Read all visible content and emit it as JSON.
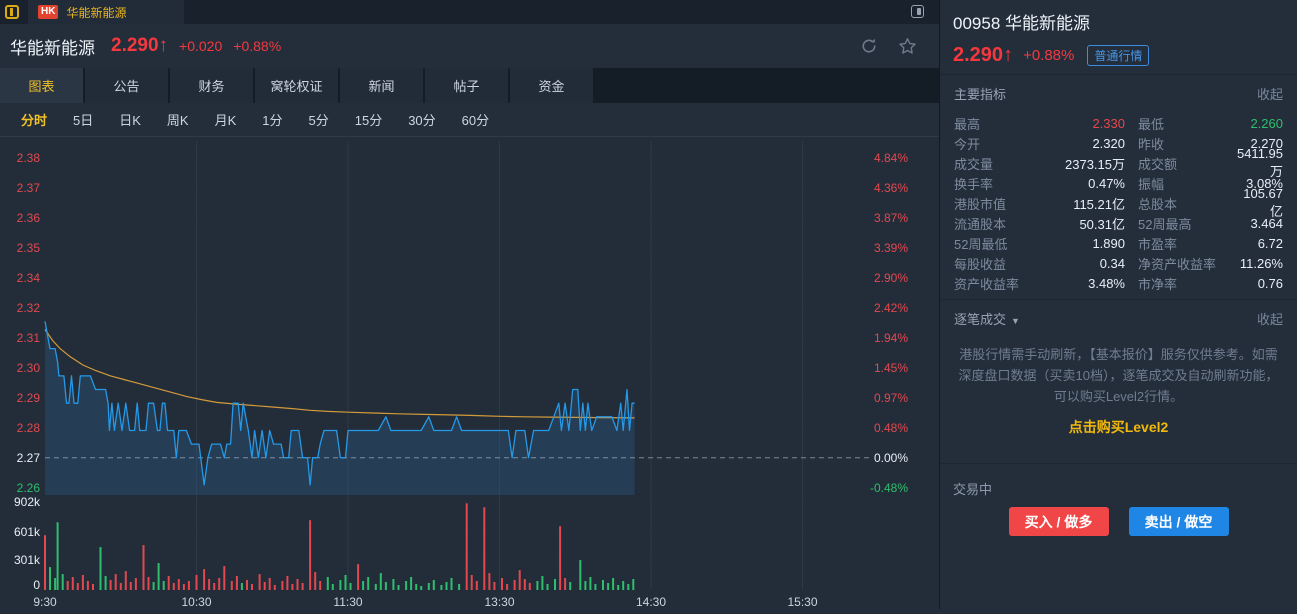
{
  "colors": {
    "up_red": "#e2484e",
    "down_green": "#2fbe6b",
    "price_red": "#f5383e",
    "accent_yellow": "#f0c028",
    "link_yellow": "#f0b90b",
    "blue": "#2b8fe8",
    "price_line": "#2499e8",
    "avg_line": "#d39a3a",
    "neutral_text": "#e9eef6"
  },
  "window": {
    "market_badge": "HK",
    "tab_title": "华能新能源"
  },
  "header": {
    "name": "华能新能源",
    "price": "2.290",
    "arrow": "↑",
    "change": "+0.020",
    "change_pct": "+0.88%"
  },
  "tabs": {
    "active_index": 0,
    "items": [
      "图表",
      "公告",
      "财务",
      "窝轮权证",
      "新闻",
      "帖子",
      "资金"
    ]
  },
  "periods": {
    "active_index": 0,
    "items": [
      "分时",
      "5日",
      "日K",
      "周K",
      "月K",
      "1分",
      "5分",
      "15分",
      "30分",
      "60分"
    ]
  },
  "chart_data": {
    "type": "line",
    "title": "分时 (intraday) 00958",
    "prev_close": 2.27,
    "x_axis": {
      "labels": [
        "9:30",
        "10:30",
        "11:30",
        "13:30",
        "14:30",
        "15:30"
      ],
      "minutes": [
        0,
        60,
        120,
        180,
        240,
        300
      ],
      "total_minutes": 330,
      "grid_minutes": [
        60,
        120,
        180,
        240,
        300
      ]
    },
    "y_axis_price": {
      "labels": [
        "2.38",
        "2.37",
        "2.36",
        "2.35",
        "2.34",
        "2.32",
        "2.31",
        "2.30",
        "2.29",
        "2.28",
        "2.27",
        "2.26"
      ],
      "top_value": 2.3799,
      "bottom_value": 2.2591
    },
    "y_axis_pct": {
      "labels": [
        "4.84%",
        "4.36%",
        "3.87%",
        "3.39%",
        "2.90%",
        "2.42%",
        "1.94%",
        "1.45%",
        "0.97%",
        "0.48%",
        "0.00%",
        "-0.48%"
      ]
    },
    "volume_axis": {
      "labels": [
        "902k",
        "601k",
        "301k",
        "0"
      ],
      "values_k": [
        902,
        601,
        301,
        0
      ]
    },
    "series": [
      {
        "name": "price",
        "color": "#2499e8",
        "points": [
          [
            0,
            2.32
          ],
          [
            1,
            2.315
          ],
          [
            2,
            2.31
          ],
          [
            4,
            2.31
          ],
          [
            5,
            2.305
          ],
          [
            5.5,
            2.3
          ],
          [
            7.5,
            2.3
          ],
          [
            8.5,
            2.29
          ],
          [
            9.5,
            2.29
          ],
          [
            10.5,
            2.3
          ],
          [
            11.5,
            2.29
          ],
          [
            13,
            2.29
          ],
          [
            14,
            2.3
          ],
          [
            18,
            2.3
          ],
          [
            20,
            2.295
          ],
          [
            24,
            2.295
          ],
          [
            25,
            2.29
          ],
          [
            25.5,
            2.28
          ],
          [
            26.5,
            2.29
          ],
          [
            27.5,
            2.28
          ],
          [
            29,
            2.29
          ],
          [
            30.5,
            2.28
          ],
          [
            32,
            2.29
          ],
          [
            33.5,
            2.28
          ],
          [
            35.5,
            2.28
          ],
          [
            36.5,
            2.29
          ],
          [
            37.5,
            2.28
          ],
          [
            40,
            2.28
          ],
          [
            41,
            2.29
          ],
          [
            43,
            2.29
          ],
          [
            44.5,
            2.28
          ],
          [
            45.5,
            2.28
          ],
          [
            46.5,
            2.29
          ],
          [
            47.5,
            2.29
          ],
          [
            48.5,
            2.28
          ],
          [
            51,
            2.28
          ],
          [
            52,
            2.27
          ],
          [
            53,
            2.28
          ],
          [
            56,
            2.28
          ],
          [
            58,
            2.275
          ],
          [
            61,
            2.275
          ],
          [
            63,
            2.26
          ],
          [
            64.5,
            2.27
          ],
          [
            66,
            2.275
          ],
          [
            69.5,
            2.275
          ],
          [
            71,
            2.27
          ],
          [
            72,
            2.275
          ],
          [
            73.5,
            2.275
          ],
          [
            74.5,
            2.29
          ],
          [
            76.5,
            2.29
          ],
          [
            77.5,
            2.28
          ],
          [
            78.5,
            2.29
          ],
          [
            80.5,
            2.28
          ],
          [
            82,
            2.27
          ],
          [
            83,
            2.28
          ],
          [
            84.5,
            2.27
          ],
          [
            86,
            2.28
          ],
          [
            87.5,
            2.27
          ],
          [
            89,
            2.28
          ],
          [
            90.5,
            2.275
          ],
          [
            93.5,
            2.275
          ],
          [
            94.5,
            2.27
          ],
          [
            96.5,
            2.27
          ],
          [
            97.5,
            2.28
          ],
          [
            100.5,
            2.28
          ],
          [
            102,
            2.27
          ],
          [
            104,
            2.27
          ],
          [
            105,
            2.26
          ],
          [
            106,
            2.27
          ],
          [
            108,
            2.27
          ],
          [
            109,
            2.275
          ],
          [
            110.5,
            2.28
          ],
          [
            115.5,
            2.28
          ],
          [
            117,
            2.27
          ],
          [
            119,
            2.27
          ],
          [
            120,
            2.28
          ],
          [
            126,
            2.28
          ],
          [
            132,
            2.28
          ],
          [
            135,
            2.285
          ],
          [
            137,
            2.28
          ],
          [
            149,
            2.28
          ],
          [
            152,
            2.285
          ],
          [
            154,
            2.28
          ],
          [
            161,
            2.28
          ],
          [
            163,
            2.285
          ],
          [
            165,
            2.28
          ],
          [
            180,
            2.28
          ],
          [
            183.5,
            2.28
          ],
          [
            185,
            2.27
          ],
          [
            186.5,
            2.28
          ],
          [
            190,
            2.28
          ],
          [
            191.5,
            2.27
          ],
          [
            193.5,
            2.28
          ],
          [
            199.5,
            2.28
          ],
          [
            201.5,
            2.285
          ],
          [
            203.5,
            2.29
          ],
          [
            204.5,
            2.28
          ],
          [
            206,
            2.29
          ],
          [
            207.5,
            2.28
          ],
          [
            209,
            2.295
          ],
          [
            211,
            2.295
          ],
          [
            212,
            2.28
          ],
          [
            213,
            2.29
          ],
          [
            214,
            2.28
          ],
          [
            215,
            2.29
          ],
          [
            216.5,
            2.28
          ],
          [
            218.5,
            2.285
          ],
          [
            224.5,
            2.285
          ],
          [
            226.5,
            2.28
          ],
          [
            228,
            2.29
          ],
          [
            229,
            2.28
          ],
          [
            230.5,
            2.295
          ],
          [
            231.5,
            2.28
          ],
          [
            232.5,
            2.29
          ],
          [
            233.5,
            2.29
          ]
        ]
      },
      {
        "name": "avg",
        "color": "#d39a3a",
        "points": [
          [
            0,
            2.317
          ],
          [
            3,
            2.313
          ],
          [
            6,
            2.31
          ],
          [
            10,
            2.307
          ],
          [
            15,
            2.304
          ],
          [
            20,
            2.302
          ],
          [
            26,
            2.3
          ],
          [
            32,
            2.2985
          ],
          [
            38,
            2.297
          ],
          [
            44,
            2.2955
          ],
          [
            50,
            2.294
          ],
          [
            56,
            2.2925
          ],
          [
            62,
            2.2913
          ],
          [
            68,
            2.2903
          ],
          [
            75,
            2.2897
          ],
          [
            82,
            2.2892
          ],
          [
            90,
            2.2886
          ],
          [
            98,
            2.288
          ],
          [
            105,
            2.2874
          ],
          [
            112,
            2.287
          ],
          [
            120,
            2.2867
          ],
          [
            130,
            2.2864
          ],
          [
            140,
            2.2861
          ],
          [
            150,
            2.2859
          ],
          [
            160,
            2.2857
          ],
          [
            170,
            2.2855
          ],
          [
            180,
            2.2852
          ],
          [
            190,
            2.285
          ],
          [
            200,
            2.2849
          ],
          [
            210,
            2.2848
          ],
          [
            220,
            2.2847
          ],
          [
            233.5,
            2.2846
          ]
        ]
      }
    ],
    "volume_bars": [
      [
        0,
        550,
        "r"
      ],
      [
        2,
        230,
        "g"
      ],
      [
        4,
        120,
        "g"
      ],
      [
        5,
        680,
        "g"
      ],
      [
        7,
        160,
        "g"
      ],
      [
        9,
        90,
        "r"
      ],
      [
        11,
        130,
        "r"
      ],
      [
        13,
        70,
        "r"
      ],
      [
        15,
        150,
        "r"
      ],
      [
        17,
        90,
        "r"
      ],
      [
        19,
        60,
        "r"
      ],
      [
        22,
        430,
        "g"
      ],
      [
        24,
        140,
        "g"
      ],
      [
        26,
        100,
        "r"
      ],
      [
        28,
        160,
        "r"
      ],
      [
        30,
        70,
        "r"
      ],
      [
        32,
        190,
        "r"
      ],
      [
        34,
        80,
        "r"
      ],
      [
        36,
        120,
        "r"
      ],
      [
        39,
        450,
        "r"
      ],
      [
        41,
        130,
        "r"
      ],
      [
        43,
        80,
        "g"
      ],
      [
        45,
        270,
        "g"
      ],
      [
        47,
        90,
        "g"
      ],
      [
        49,
        140,
        "r"
      ],
      [
        51,
        70,
        "r"
      ],
      [
        53,
        110,
        "r"
      ],
      [
        55,
        60,
        "r"
      ],
      [
        57,
        90,
        "r"
      ],
      [
        60,
        150,
        "r"
      ],
      [
        63,
        210,
        "r"
      ],
      [
        65,
        110,
        "r"
      ],
      [
        67,
        70,
        "r"
      ],
      [
        69,
        120,
        "r"
      ],
      [
        71,
        240,
        "r"
      ],
      [
        74,
        90,
        "r"
      ],
      [
        76,
        140,
        "r"
      ],
      [
        78,
        70,
        "g"
      ],
      [
        80,
        100,
        "r"
      ],
      [
        82,
        60,
        "r"
      ],
      [
        85,
        160,
        "r"
      ],
      [
        87,
        80,
        "r"
      ],
      [
        89,
        120,
        "r"
      ],
      [
        91,
        50,
        "r"
      ],
      [
        94,
        90,
        "r"
      ],
      [
        96,
        140,
        "r"
      ],
      [
        98,
        60,
        "r"
      ],
      [
        100,
        110,
        "r"
      ],
      [
        102,
        70,
        "r"
      ],
      [
        105,
        700,
        "r"
      ],
      [
        107,
        180,
        "r"
      ],
      [
        109,
        90,
        "r"
      ],
      [
        112,
        130,
        "g"
      ],
      [
        114,
        60,
        "g"
      ],
      [
        117,
        100,
        "g"
      ],
      [
        119,
        150,
        "g"
      ],
      [
        121,
        70,
        "g"
      ],
      [
        124,
        260,
        "r"
      ],
      [
        126,
        90,
        "g"
      ],
      [
        128,
        130,
        "g"
      ],
      [
        131,
        60,
        "g"
      ],
      [
        133,
        170,
        "g"
      ],
      [
        135,
        80,
        "g"
      ],
      [
        138,
        110,
        "g"
      ],
      [
        140,
        50,
        "g"
      ],
      [
        143,
        90,
        "g"
      ],
      [
        145,
        130,
        "g"
      ],
      [
        147,
        60,
        "g"
      ],
      [
        149,
        40,
        "g"
      ],
      [
        152,
        70,
        "g"
      ],
      [
        154,
        100,
        "g"
      ],
      [
        157,
        50,
        "g"
      ],
      [
        159,
        80,
        "g"
      ],
      [
        161,
        120,
        "g"
      ],
      [
        164,
        60,
        "g"
      ],
      [
        167,
        870,
        "r"
      ],
      [
        169,
        150,
        "r"
      ],
      [
        171,
        90,
        "r"
      ],
      [
        174,
        830,
        "r"
      ],
      [
        176,
        170,
        "r"
      ],
      [
        178,
        80,
        "r"
      ],
      [
        181,
        120,
        "r"
      ],
      [
        183,
        60,
        "r"
      ],
      [
        186,
        100,
        "r"
      ],
      [
        188,
        200,
        "r"
      ],
      [
        190,
        110,
        "r"
      ],
      [
        192,
        70,
        "r"
      ],
      [
        195,
        90,
        "g"
      ],
      [
        197,
        140,
        "g"
      ],
      [
        199,
        60,
        "g"
      ],
      [
        202,
        110,
        "g"
      ],
      [
        204,
        640,
        "r"
      ],
      [
        206,
        120,
        "r"
      ],
      [
        208,
        80,
        "g"
      ],
      [
        212,
        300,
        "g"
      ],
      [
        214,
        90,
        "g"
      ],
      [
        216,
        130,
        "g"
      ],
      [
        218,
        60,
        "g"
      ],
      [
        221,
        100,
        "g"
      ],
      [
        223,
        70,
        "g"
      ],
      [
        225,
        120,
        "g"
      ],
      [
        227,
        50,
        "g"
      ],
      [
        229,
        90,
        "g"
      ],
      [
        231,
        60,
        "g"
      ],
      [
        233,
        110,
        "g"
      ]
    ]
  },
  "panel": {
    "code_title": "00958 华能新能源",
    "price": "2.290",
    "arrow": "↑",
    "change_pct": "+0.88%",
    "quote_badge": "普通行情",
    "indicators_title": "主要指标",
    "indicators_collapse": "收起",
    "indicators": [
      [
        "最高",
        "2.330",
        "up",
        "最低",
        "2.260",
        "down"
      ],
      [
        "今开",
        "2.320",
        "",
        "昨收",
        "2.270",
        ""
      ],
      [
        "成交量",
        "2373.15万",
        "",
        "成交额",
        "5411.95万",
        ""
      ],
      [
        "换手率",
        "0.47%",
        "",
        "振幅",
        "3.08%",
        ""
      ],
      [
        "港股市值",
        "115.21亿",
        "",
        "总股本",
        "105.67亿",
        ""
      ],
      [
        "流通股本",
        "50.31亿",
        "",
        "52周最高",
        "3.464",
        ""
      ],
      [
        "52周最低",
        "1.890",
        "",
        "市盈率",
        "6.72",
        ""
      ],
      [
        "每股收益",
        "0.34",
        "",
        "净资产收益率",
        "11.26%",
        ""
      ],
      [
        "资产收益率",
        "3.48%",
        "",
        "市净率",
        "0.76",
        ""
      ]
    ],
    "ticks_title": "逐笔成交",
    "ticks_caret": "▼",
    "ticks_collapse": "收起",
    "ticks_notice": "港股行情需手动刷新，【基本报价】服务仅供参考。如需深度盘口数据（买卖10档），逐笔成交及自动刷新功能，可以购买Level2行情。",
    "level2_link": "点击购买Level2",
    "trading_status": "交易中",
    "buy_button": "买入 / 做多",
    "sell_button": "卖出 / 做空"
  }
}
